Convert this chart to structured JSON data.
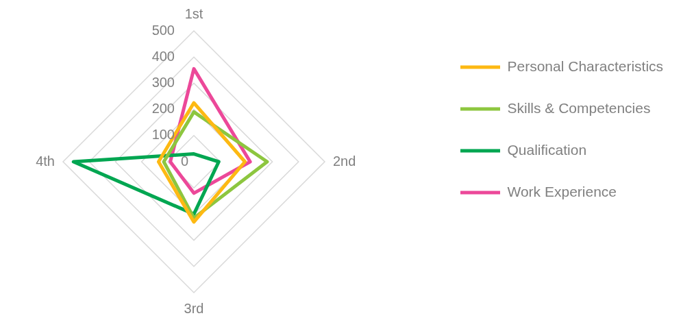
{
  "chart_data": {
    "type": "radar",
    "categories": [
      "1st",
      "2nd",
      "3rd",
      "4th"
    ],
    "series": [
      {
        "name": "Personal Characteristics",
        "color": "#fdb913",
        "values": [
          225,
          195,
          230,
          135
        ]
      },
      {
        "name": "Skills & Competencies",
        "color": "#8dc63f",
        "values": [
          190,
          280,
          215,
          115
        ]
      },
      {
        "name": "Qualification",
        "color": "#00a651",
        "values": [
          30,
          95,
          200,
          460
        ]
      },
      {
        "name": "Work Experience",
        "color": "#ec4899",
        "values": [
          355,
          215,
          120,
          90
        ]
      }
    ],
    "ylim": [
      0,
      500
    ],
    "yticks": [
      0,
      100,
      200,
      300,
      400,
      500
    ],
    "grid": true,
    "legend": "right",
    "marker": "none",
    "line_style": "solid"
  }
}
